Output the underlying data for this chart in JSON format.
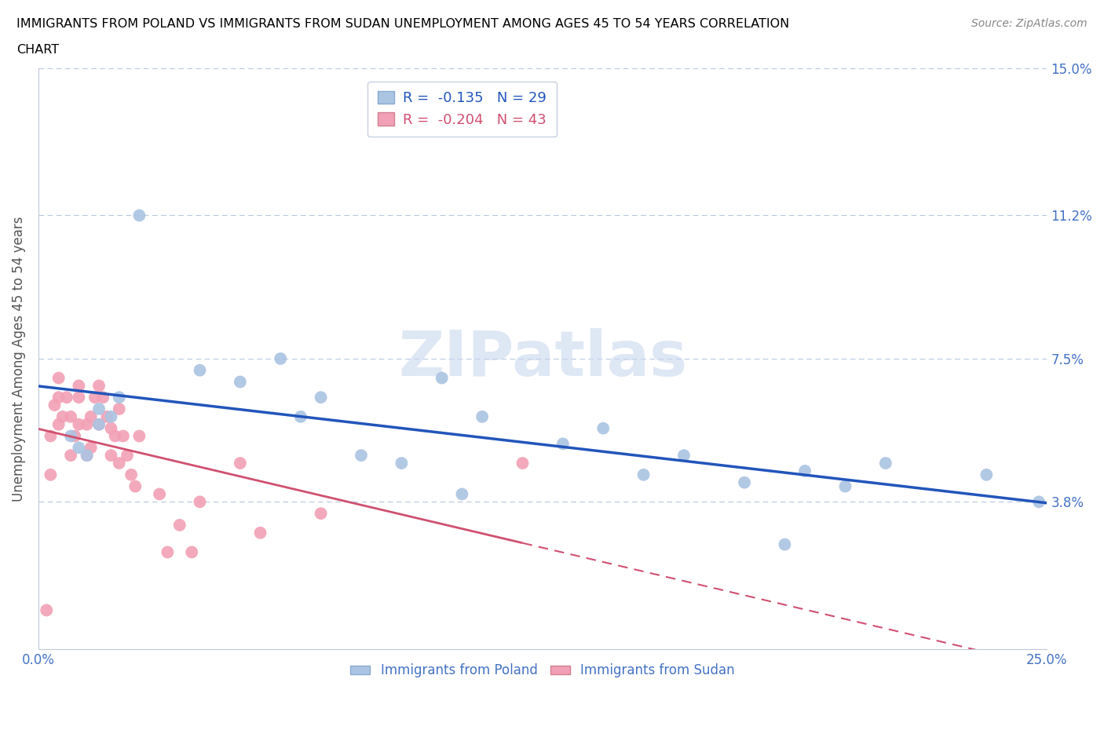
{
  "title_line1": "IMMIGRANTS FROM POLAND VS IMMIGRANTS FROM SUDAN UNEMPLOYMENT AMONG AGES 45 TO 54 YEARS CORRELATION",
  "title_line2": "CHART",
  "source": "Source: ZipAtlas.com",
  "ylabel": "Unemployment Among Ages 45 to 54 years",
  "xlim": [
    0.0,
    0.25
  ],
  "ylim": [
    0.0,
    0.15
  ],
  "yticks": [
    0.0,
    0.038,
    0.075,
    0.112,
    0.15
  ],
  "ytick_labels": [
    "",
    "3.8%",
    "7.5%",
    "11.2%",
    "15.0%"
  ],
  "xticks": [
    0.0,
    0.05,
    0.1,
    0.15,
    0.2,
    0.25
  ],
  "xtick_labels": [
    "0.0%",
    "",
    "",
    "",
    "",
    "25.0%"
  ],
  "poland_R": -0.135,
  "poland_N": 29,
  "sudan_R": -0.204,
  "sudan_N": 43,
  "poland_color": "#aac4e2",
  "sudan_color": "#f2a0b5",
  "poland_line_color": "#2255bb",
  "sudan_line_color": "#d05070",
  "legend_poland": "Immigrants from Poland",
  "legend_sudan": "Immigrants from Sudan",
  "watermark": "ZIPatlas",
  "poland_x": [
    0.008,
    0.01,
    0.012,
    0.015,
    0.015,
    0.018,
    0.02,
    0.025,
    0.04,
    0.05,
    0.06,
    0.065,
    0.07,
    0.08,
    0.09,
    0.1,
    0.105,
    0.11,
    0.13,
    0.14,
    0.15,
    0.16,
    0.175,
    0.185,
    0.19,
    0.2,
    0.21,
    0.235,
    0.248
  ],
  "poland_y": [
    0.055,
    0.052,
    0.05,
    0.058,
    0.062,
    0.06,
    0.065,
    0.112,
    0.072,
    0.069,
    0.075,
    0.06,
    0.065,
    0.05,
    0.048,
    0.07,
    0.04,
    0.06,
    0.053,
    0.057,
    0.045,
    0.05,
    0.043,
    0.027,
    0.046,
    0.042,
    0.048,
    0.045,
    0.038
  ],
  "sudan_x": [
    0.002,
    0.003,
    0.003,
    0.004,
    0.005,
    0.005,
    0.005,
    0.006,
    0.007,
    0.008,
    0.008,
    0.009,
    0.01,
    0.01,
    0.01,
    0.012,
    0.012,
    0.013,
    0.013,
    0.014,
    0.015,
    0.015,
    0.016,
    0.017,
    0.018,
    0.018,
    0.019,
    0.02,
    0.02,
    0.021,
    0.022,
    0.023,
    0.024,
    0.025,
    0.03,
    0.032,
    0.035,
    0.038,
    0.04,
    0.05,
    0.055,
    0.07,
    0.12
  ],
  "sudan_y": [
    0.01,
    0.045,
    0.055,
    0.063,
    0.058,
    0.065,
    0.07,
    0.06,
    0.065,
    0.05,
    0.06,
    0.055,
    0.058,
    0.065,
    0.068,
    0.05,
    0.058,
    0.052,
    0.06,
    0.065,
    0.058,
    0.068,
    0.065,
    0.06,
    0.05,
    0.057,
    0.055,
    0.048,
    0.062,
    0.055,
    0.05,
    0.045,
    0.042,
    0.055,
    0.04,
    0.025,
    0.032,
    0.025,
    0.038,
    0.048,
    0.03,
    0.035,
    0.048
  ]
}
